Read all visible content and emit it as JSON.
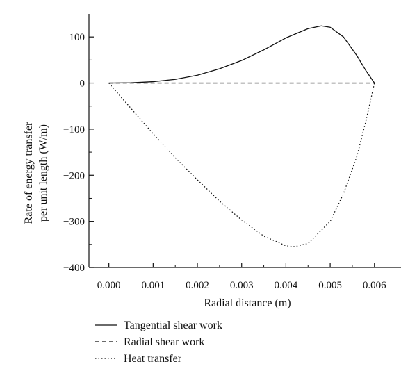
{
  "chart_data": {
    "type": "line",
    "xlabel": "Radial distance (m)",
    "ylabel_lines": [
      "Rate of energy transfer",
      "per unit length (W/m)"
    ],
    "xlim": [
      -0.00045,
      0.0066
    ],
    "ylim": [
      -400,
      150
    ],
    "xticks": [
      0.0,
      0.001,
      0.002,
      0.003,
      0.004,
      0.005,
      0.006
    ],
    "xtick_labels": [
      "0.000",
      "0.001",
      "0.002",
      "0.003",
      "0.004",
      "0.005",
      "0.006"
    ],
    "xminor": [
      0.0005,
      0.0015,
      0.0025,
      0.0035,
      0.0045,
      0.0055
    ],
    "yticks": [
      -400,
      -300,
      -200,
      -100,
      0,
      100
    ],
    "ytick_labels": [
      "−400",
      "−300",
      "−200",
      "−100",
      "0",
      "100"
    ],
    "yminor": [
      -350,
      -250,
      -150,
      -50,
      50
    ],
    "grid": false,
    "legend_position": "bottom-left, below plot",
    "series": [
      {
        "name": "Tangential shear work",
        "style": "solid",
        "x": [
          0.0,
          0.0005,
          0.001,
          0.0015,
          0.002,
          0.0025,
          0.003,
          0.0035,
          0.004,
          0.0045,
          0.0048,
          0.005,
          0.0053,
          0.0056,
          0.0058,
          0.006
        ],
        "y": [
          0,
          0.5,
          3,
          8,
          17,
          31,
          49,
          72,
          98,
          118,
          124,
          121,
          100,
          60,
          28,
          0
        ]
      },
      {
        "name": "Radial shear work",
        "style": "dashed",
        "x": [
          0.0,
          0.006
        ],
        "y": [
          0,
          0
        ]
      },
      {
        "name": "Heat transfer",
        "style": "dotted",
        "x": [
          0.0,
          0.0005,
          0.001,
          0.0015,
          0.002,
          0.0025,
          0.003,
          0.0035,
          0.004,
          0.0042,
          0.0045,
          0.005,
          0.0053,
          0.0056,
          0.0058,
          0.006
        ],
        "y": [
          0,
          -55,
          -110,
          -162,
          -210,
          -256,
          -297,
          -332,
          -353,
          -355,
          -348,
          -300,
          -240,
          -160,
          -85,
          0
        ]
      }
    ]
  }
}
